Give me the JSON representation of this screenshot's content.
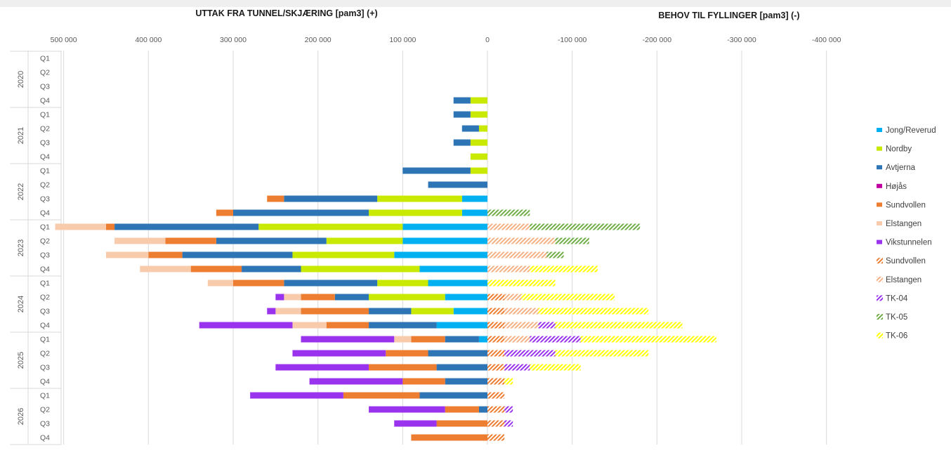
{
  "chart_data": {
    "type": "bar",
    "orientation": "horizontal",
    "stacked": true,
    "left_title": "UTTAK FRA TUNNEL/SKJÆRING [pam3] (+)",
    "right_title": "BEHOV TIL FYLLINGER [pam3]  (-)",
    "x_ticks": [
      {
        "value": 500000,
        "label": "500 000"
      },
      {
        "value": 400000,
        "label": "400 000"
      },
      {
        "value": 300000,
        "label": "300 000"
      },
      {
        "value": 200000,
        "label": "200 000"
      },
      {
        "value": 100000,
        "label": "100 000"
      },
      {
        "value": 0,
        "label": "0"
      },
      {
        "value": -100000,
        "label": "-100 000"
      },
      {
        "value": -200000,
        "label": "-200 000"
      },
      {
        "value": -300000,
        "label": "-300 000"
      },
      {
        "value": -400000,
        "label": "-400 000"
      }
    ],
    "xlim": [
      -520000,
      500000
    ],
    "grid": "vertical",
    "legend_position": "right",
    "years": [
      {
        "label": "2020",
        "quarters": [
          "Q1",
          "Q2",
          "Q3",
          "Q4"
        ]
      },
      {
        "label": "2021",
        "quarters": [
          "Q1",
          "Q2",
          "Q3",
          "Q4"
        ]
      },
      {
        "label": "2022",
        "quarters": [
          "Q1",
          "Q2",
          "Q3",
          "Q4"
        ]
      },
      {
        "label": "2023",
        "quarters": [
          "Q1",
          "Q2",
          "Q3",
          "Q4"
        ]
      },
      {
        "label": "2024",
        "quarters": [
          "Q1",
          "Q2",
          "Q3",
          "Q4"
        ]
      },
      {
        "label": "2025",
        "quarters": [
          "Q1",
          "Q2",
          "Q3",
          "Q4"
        ]
      },
      {
        "label": "2026",
        "quarters": [
          "Q1",
          "Q2",
          "Q3",
          "Q4"
        ]
      }
    ],
    "series": [
      {
        "name": "Jong/Reverud",
        "side": "uttak",
        "color": "#00b0f0",
        "pattern": "solid",
        "values": [
          0,
          0,
          0,
          0,
          0,
          0,
          0,
          0,
          0,
          0,
          30000,
          30000,
          100000,
          100000,
          110000,
          80000,
          70000,
          50000,
          40000,
          60000,
          10000,
          0,
          0,
          0,
          0,
          0,
          0,
          0
        ]
      },
      {
        "name": "Nordby",
        "side": "uttak",
        "color": "#c9ea00",
        "pattern": "solid",
        "values": [
          0,
          0,
          0,
          20000,
          20000,
          10000,
          20000,
          20000,
          20000,
          0,
          100000,
          110000,
          170000,
          90000,
          120000,
          140000,
          60000,
          90000,
          50000,
          0,
          0,
          0,
          0,
          0,
          0,
          0,
          0,
          0
        ]
      },
      {
        "name": "Avtjerna",
        "side": "uttak",
        "color": "#2e75b6",
        "pattern": "solid",
        "values": [
          0,
          0,
          0,
          20000,
          20000,
          20000,
          20000,
          0,
          80000,
          70000,
          110000,
          160000,
          170000,
          130000,
          130000,
          70000,
          110000,
          40000,
          50000,
          80000,
          40000,
          70000,
          60000,
          50000,
          80000,
          10000,
          0,
          0
        ]
      },
      {
        "name": "Højås",
        "side": "uttak",
        "color": "#c000a0",
        "pattern": "solid",
        "values": [
          0,
          0,
          0,
          0,
          0,
          0,
          0,
          0,
          0,
          0,
          0,
          0,
          0,
          0,
          0,
          0,
          0,
          0,
          0,
          0,
          0,
          0,
          0,
          0,
          0,
          0,
          0,
          0
        ]
      },
      {
        "name": "Sundvollen",
        "side": "uttak",
        "color": "#ed7d31",
        "pattern": "solid",
        "values": [
          0,
          0,
          0,
          0,
          0,
          0,
          0,
          0,
          0,
          0,
          20000,
          20000,
          10000,
          60000,
          40000,
          60000,
          60000,
          40000,
          80000,
          50000,
          40000,
          50000,
          80000,
          50000,
          90000,
          40000,
          60000,
          90000
        ]
      },
      {
        "name": "Elstangen",
        "side": "uttak",
        "color": "#f8cbad",
        "pattern": "solid",
        "values": [
          0,
          0,
          0,
          0,
          0,
          0,
          0,
          0,
          0,
          0,
          0,
          0,
          60000,
          60000,
          50000,
          60000,
          30000,
          20000,
          30000,
          40000,
          20000,
          0,
          0,
          0,
          0,
          0,
          0,
          0
        ]
      },
      {
        "name": "Vikstunnelen",
        "side": "uttak",
        "color": "#9933ee",
        "pattern": "solid",
        "values": [
          0,
          0,
          0,
          0,
          0,
          0,
          0,
          0,
          0,
          0,
          0,
          0,
          0,
          0,
          0,
          0,
          0,
          10000,
          10000,
          110000,
          110000,
          110000,
          110000,
          110000,
          110000,
          90000,
          50000,
          0
        ]
      },
      {
        "name": "Sundvollen",
        "side": "behov",
        "color": "#ed7d31",
        "pattern": "hatch",
        "values": [
          0,
          0,
          0,
          0,
          0,
          0,
          0,
          0,
          0,
          0,
          0,
          0,
          0,
          0,
          0,
          0,
          0,
          -20000,
          -20000,
          -20000,
          -20000,
          -20000,
          -20000,
          -20000,
          -20000,
          -20000,
          -20000,
          -20000
        ]
      },
      {
        "name": "Elstangen",
        "side": "behov",
        "color": "#f4b183",
        "pattern": "hatch",
        "values": [
          0,
          0,
          0,
          0,
          0,
          0,
          0,
          0,
          0,
          0,
          0,
          0,
          -50000,
          -80000,
          -70000,
          -50000,
          0,
          -20000,
          -40000,
          -40000,
          -30000,
          0,
          0,
          0,
          0,
          0,
          0,
          0
        ]
      },
      {
        "name": "TK-04",
        "side": "behov",
        "color": "#9933ee",
        "pattern": "hatch",
        "values": [
          0,
          0,
          0,
          0,
          0,
          0,
          0,
          0,
          0,
          0,
          0,
          0,
          0,
          0,
          0,
          0,
          0,
          0,
          0,
          -20000,
          -60000,
          -60000,
          -30000,
          0,
          0,
          -10000,
          -10000,
          0
        ]
      },
      {
        "name": "TK-05",
        "side": "behov",
        "color": "#70ad47",
        "pattern": "hatch",
        "values": [
          0,
          0,
          0,
          0,
          0,
          0,
          0,
          0,
          0,
          0,
          0,
          -50000,
          -130000,
          -40000,
          -20000,
          0,
          0,
          0,
          0,
          0,
          0,
          0,
          0,
          0,
          0,
          0,
          0,
          0
        ]
      },
      {
        "name": "TK-06",
        "side": "behov",
        "color": "#ffff00",
        "pattern": "hatch",
        "values": [
          0,
          0,
          0,
          0,
          0,
          0,
          0,
          0,
          0,
          0,
          0,
          0,
          0,
          0,
          0,
          -80000,
          -80000,
          -110000,
          -130000,
          -150000,
          -160000,
          -110000,
          -60000,
          -10000,
          0,
          0,
          0,
          0
        ]
      }
    ],
    "legend": [
      "Jong/Reverud",
      "Nordby",
      "Avtjerna",
      "Højås",
      "Sundvollen",
      "Elstangen",
      "Vikstunnelen",
      "Sundvollen",
      "Elstangen",
      "TK-04",
      "TK-05",
      "TK-06"
    ]
  }
}
